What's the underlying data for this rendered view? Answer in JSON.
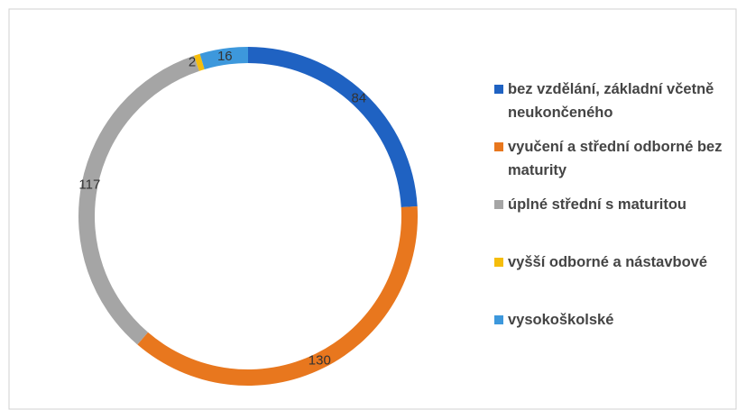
{
  "chart_data": {
    "type": "donut",
    "categories": [
      "bez vzdělání, základní včetně neukončeného",
      "vyučení a střední odborné bez maturity",
      "úplné střední s maturitou",
      "vyšší odborné a nástavbové",
      "vysokoškolské"
    ],
    "values": [
      84,
      130,
      117,
      2,
      16
    ],
    "colors": [
      "#1f62c2",
      "#e8771e",
      "#a5a5a5",
      "#f5bd0c",
      "#3d98dc"
    ],
    "legend": "right"
  }
}
